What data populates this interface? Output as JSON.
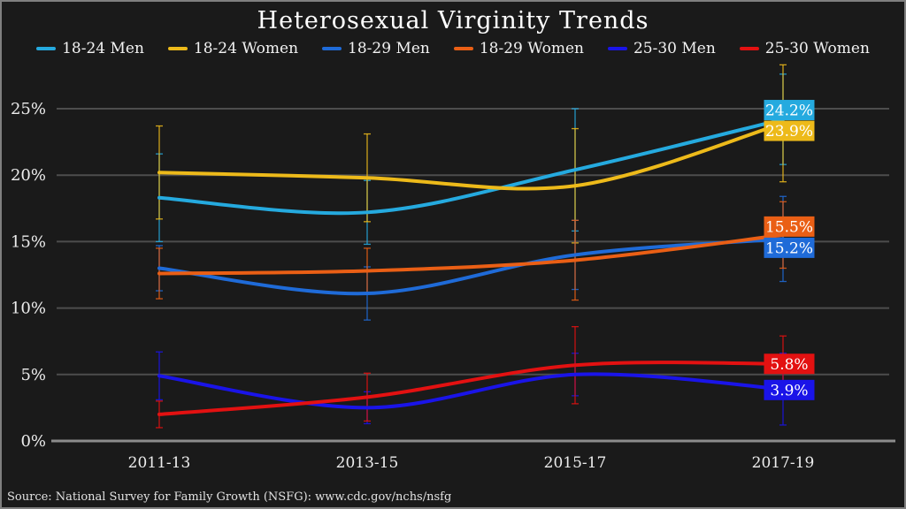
{
  "title": "Heterosexual Virginity Trends",
  "source": "Source: National Survey for Family Growth (NSFG): www.cdc.gov/nchs/nsfg",
  "colors": {
    "background": "#1a1a1a",
    "border": "#7f7f7f",
    "gridline": "#4d4d4d",
    "zeroline": "#8c8c8c",
    "tick_text": "#ededed",
    "label_text": "#ffffff"
  },
  "chart_data": {
    "type": "line",
    "categories": [
      "2011-13",
      "2013-15",
      "2015-17",
      "2017-19"
    ],
    "yticks": [
      {
        "label": "0%",
        "value": 0
      },
      {
        "label": "5%",
        "value": 5
      },
      {
        "label": "10%",
        "value": 10
      },
      {
        "label": "15%",
        "value": 15
      },
      {
        "label": "20%",
        "value": 20
      },
      {
        "label": "25%",
        "value": 25
      }
    ],
    "ylim": [
      0,
      28.5
    ],
    "grid": true,
    "legend_position": "top",
    "smoothing": "spline",
    "series": [
      {
        "name": "18-24 Men",
        "color": "#25aadf",
        "values": [
          18.3,
          17.2,
          20.4,
          24.2
        ],
        "err": [
          3.3,
          2.4,
          4.6,
          3.4
        ],
        "end_label": "24.2%"
      },
      {
        "name": "18-24 Women",
        "color": "#edba1a",
        "values": [
          20.2,
          19.8,
          19.2,
          23.9
        ],
        "err": [
          3.5,
          3.3,
          4.3,
          4.4
        ],
        "end_label": "23.9%"
      },
      {
        "name": "18-29 Men",
        "color": "#1f6bd8",
        "values": [
          13.0,
          11.1,
          14.0,
          15.2
        ],
        "err": [
          1.7,
          2.0,
          2.6,
          3.2
        ],
        "end_label": "15.2%"
      },
      {
        "name": "18-29 Women",
        "color": "#ea5f15",
        "values": [
          12.6,
          12.8,
          13.6,
          15.5
        ],
        "err": [
          1.9,
          1.7,
          3.0,
          2.5
        ],
        "end_label": "15.5%"
      },
      {
        "name": "25-30 Men",
        "color": "#1a14e8",
        "values": [
          4.9,
          2.5,
          5.0,
          3.9
        ],
        "err": [
          1.8,
          1.2,
          1.6,
          2.7
        ],
        "end_label": "3.9%"
      },
      {
        "name": "25-30 Women",
        "color": "#e31111",
        "values": [
          2.0,
          3.3,
          5.7,
          5.8
        ],
        "err": [
          1.0,
          1.8,
          2.9,
          2.1
        ],
        "end_label": "5.8%"
      }
    ]
  }
}
